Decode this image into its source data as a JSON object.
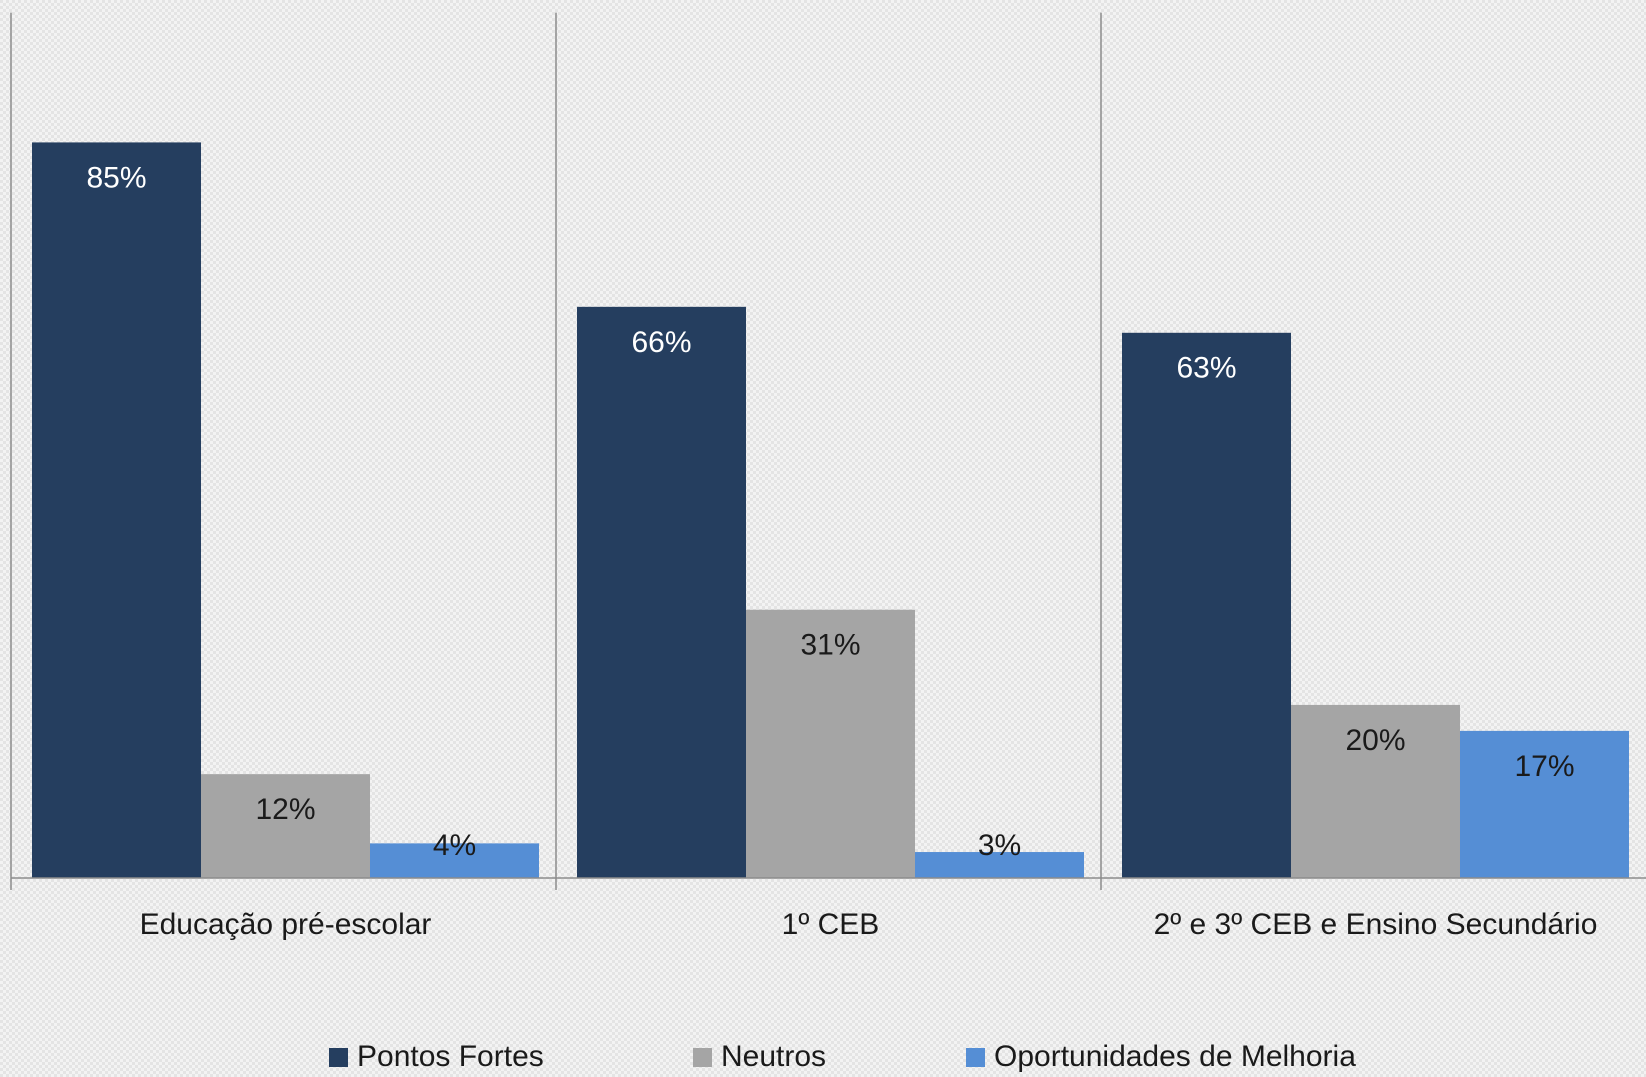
{
  "chart_data": {
    "type": "bar",
    "categories": [
      "Educação pré-escolar",
      "1º CEB",
      "2º e 3º CEB e Ensino Secundário"
    ],
    "series": [
      {
        "name": "Pontos Fortes",
        "color": "#253e5f",
        "values": [
          85,
          66,
          63
        ],
        "value_labels": [
          "85%",
          "66%",
          "63%"
        ]
      },
      {
        "name": "Neutros",
        "color": "#a5a5a5",
        "values": [
          12,
          31,
          20
        ],
        "value_labels": [
          "12%",
          "31%",
          "20%"
        ]
      },
      {
        "name": "Oportunidades de Melhoria",
        "color": "#558ed5",
        "values": [
          4,
          3,
          17
        ],
        "value_labels": [
          "4%",
          "3%",
          "17%"
        ]
      }
    ],
    "ylim": [
      0,
      100
    ],
    "legend": "bottom"
  }
}
